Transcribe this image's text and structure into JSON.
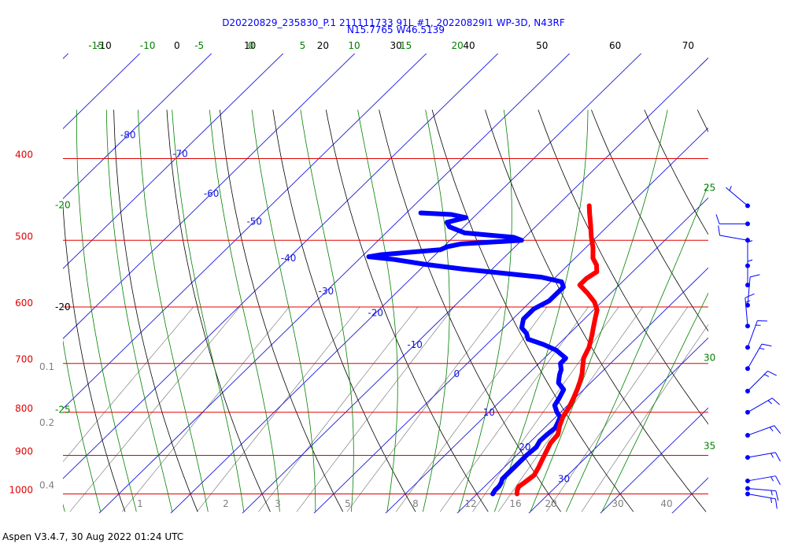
{
  "header": {
    "title_line1": "D20220829_235830_P.1 211111733 91L #1, 20220829I1 WP-3D, N43RF",
    "title_line2": "N15.7765 W46.5139"
  },
  "footer": {
    "software": "Aspen V3.4.7, 30 Aug 2022  01:24 UTC"
  },
  "chart_data": {
    "type": "line",
    "diagram": "skew-T log-P",
    "pressure_levels": [
      {
        "p": 400,
        "label": "400"
      },
      {
        "p": 500,
        "label": "500"
      },
      {
        "p": 600,
        "label": "600"
      },
      {
        "p": 700,
        "label": "700"
      },
      {
        "p": 800,
        "label": "800"
      },
      {
        "p": 900,
        "label": "900"
      },
      {
        "p": 1000,
        "label": "1000"
      }
    ],
    "top_temperature_labels": [
      "-10",
      "0",
      "10",
      "20",
      "30",
      "40",
      "50",
      "60",
      "70"
    ],
    "isotherm_labels": [
      {
        "t": -80,
        "p": 375,
        "label": "-80"
      },
      {
        "t": -70,
        "p": 395,
        "label": "-70"
      },
      {
        "t": -60,
        "p": 440,
        "label": "-60"
      },
      {
        "t": -50,
        "p": 475,
        "label": "-50"
      },
      {
        "t": -40,
        "p": 525,
        "label": "-40"
      },
      {
        "t": -30,
        "p": 575,
        "label": "-30"
      },
      {
        "t": -20,
        "p": 610,
        "label": "-20"
      },
      {
        "t": -10,
        "p": 665,
        "label": "-10"
      },
      {
        "t": 0,
        "p": 720,
        "label": "0"
      },
      {
        "t": 10,
        "p": 800,
        "label": "10"
      },
      {
        "t": 20,
        "p": 880,
        "label": "20"
      },
      {
        "t": 30,
        "p": 960,
        "label": "30"
      }
    ],
    "moist_adiabat_top_labels": [
      "-15",
      "-10",
      "-5",
      "0",
      "5",
      "10",
      "15",
      "20"
    ],
    "moist_adiabat_side_labels": [
      {
        "label": "-20",
        "side": "left",
        "p": 458
      },
      {
        "label": "-25",
        "side": "left",
        "p": 801
      },
      {
        "label": "25",
        "side": "right",
        "p": 437
      },
      {
        "label": "30",
        "side": "right",
        "p": 695
      },
      {
        "label": "35",
        "side": "right",
        "p": 885
      }
    ],
    "dry_adiabat_side_label": {
      "label": "-20",
      "p": 605
    },
    "mixing_ratio_side_labels": [
      {
        "label": "0.1",
        "p": 713
      },
      {
        "label": "0.2",
        "p": 830
      },
      {
        "label": "0.4",
        "p": 985
      }
    ],
    "mixing_ratio_bottom_labels": [
      "1",
      "2",
      "3",
      "5",
      "8",
      "12",
      "16",
      "20",
      "30",
      "40"
    ],
    "temperature_profile": [
      [
        1000,
        25.6
      ],
      [
        990,
        25.1
      ],
      [
        980,
        24.8
      ],
      [
        970,
        25.0
      ],
      [
        950,
        25.3
      ],
      [
        930,
        24.8
      ],
      [
        910,
        24.2
      ],
      [
        890,
        23.6
      ],
      [
        870,
        23.0
      ],
      [
        850,
        22.8
      ],
      [
        830,
        21.8
      ],
      [
        810,
        21.0
      ],
      [
        790,
        20.5
      ],
      [
        770,
        19.8
      ],
      [
        750,
        19.0
      ],
      [
        735,
        18.3
      ],
      [
        720,
        17.5
      ],
      [
        705,
        16.5
      ],
      [
        690,
        15.5
      ],
      [
        670,
        14.7
      ],
      [
        650,
        13.5
      ],
      [
        635,
        12.5
      ],
      [
        620,
        11.5
      ],
      [
        605,
        10.5
      ],
      [
        592,
        9.0
      ],
      [
        578,
        6.8
      ],
      [
        565,
        4.5
      ],
      [
        555,
        4.5
      ],
      [
        545,
        5.0
      ],
      [
        535,
        4.0
      ],
      [
        525,
        2.5
      ],
      [
        510,
        1.0
      ],
      [
        495,
        -0.8
      ],
      [
        480,
        -2.5
      ],
      [
        465,
        -4.3
      ],
      [
        455,
        -5.5
      ]
    ],
    "dewpoint_profile": [
      [
        1000,
        22.2
      ],
      [
        990,
        22.0
      ],
      [
        980,
        22.0
      ],
      [
        970,
        21.8
      ],
      [
        960,
        21.4
      ],
      [
        945,
        21.4
      ],
      [
        930,
        21.4
      ],
      [
        915,
        21.4
      ],
      [
        900,
        21.4
      ],
      [
        880,
        21.6
      ],
      [
        865,
        21.2
      ],
      [
        850,
        21.3
      ],
      [
        835,
        21.5
      ],
      [
        820,
        21.0
      ],
      [
        810,
        20.6
      ],
      [
        800,
        19.5
      ],
      [
        785,
        18.2
      ],
      [
        770,
        17.8
      ],
      [
        752,
        17.2
      ],
      [
        738,
        15.5
      ],
      [
        722,
        14.5
      ],
      [
        712,
        14.0
      ],
      [
        700,
        13.0
      ],
      [
        690,
        13.0
      ],
      [
        675,
        10.5
      ],
      [
        665,
        8.0
      ],
      [
        655,
        5.0
      ],
      [
        645,
        4.0
      ],
      [
        635,
        2.5
      ],
      [
        620,
        1.5
      ],
      [
        603,
        1.5
      ],
      [
        590,
        2.5
      ],
      [
        578,
        2.5
      ],
      [
        568,
        2.5
      ],
      [
        560,
        1.5
      ],
      [
        553,
        -2.0
      ],
      [
        547,
        -8.0
      ],
      [
        541,
        -14.0
      ],
      [
        534,
        -20.0
      ],
      [
        527,
        -25.0
      ],
      [
        523,
        -29.0
      ],
      [
        520,
        -27.5
      ],
      [
        513,
        -20.0
      ],
      [
        509,
        -19.5
      ],
      [
        505,
        -18.0
      ],
      [
        500,
        -10.0
      ],
      [
        496,
        -11.5
      ],
      [
        490,
        -19.0
      ],
      [
        482,
        -22.0
      ],
      [
        476,
        -23.0
      ],
      [
        470,
        -21.0
      ],
      [
        466,
        -23.5
      ],
      [
        464,
        -28.0
      ]
    ],
    "wind_barbs": [
      {
        "p": 455,
        "dir": 310,
        "speed": 5
      },
      {
        "p": 478,
        "dir": 270,
        "speed": 10
      },
      {
        "p": 500,
        "dir": 280,
        "speed": 10
      },
      {
        "p": 536,
        "dir": 360,
        "speed": 5
      },
      {
        "p": 565,
        "dir": 360,
        "speed": 5
      },
      {
        "p": 597,
        "dir": 5,
        "speed": 10
      },
      {
        "p": 632,
        "dir": 355,
        "speed": 15
      },
      {
        "p": 670,
        "dir": 20,
        "speed": 15
      },
      {
        "p": 710,
        "dir": 30,
        "speed": 15
      },
      {
        "p": 755,
        "dir": 45,
        "speed": 15
      },
      {
        "p": 800,
        "dir": 60,
        "speed": 15
      },
      {
        "p": 852,
        "dir": 70,
        "speed": 15
      },
      {
        "p": 905,
        "dir": 80,
        "speed": 15
      },
      {
        "p": 965,
        "dir": 80,
        "speed": 15
      },
      {
        "p": 985,
        "dir": 95,
        "speed": 15
      },
      {
        "p": 1000,
        "dir": 100,
        "speed": 15
      }
    ],
    "colors": {
      "isobar": "#e00000",
      "pressure_label": "#e00000",
      "isotherm": "#1a1adc",
      "isotherm_label": "#1a1adc",
      "moist_adiabat": "#008000",
      "dry_adiabat": "#000000",
      "mixing_ratio": "#808080",
      "temperature": "#ff0000",
      "dewpoint": "#0000ff",
      "wind_barb": "#0000ff",
      "title": "#0000ff"
    }
  }
}
